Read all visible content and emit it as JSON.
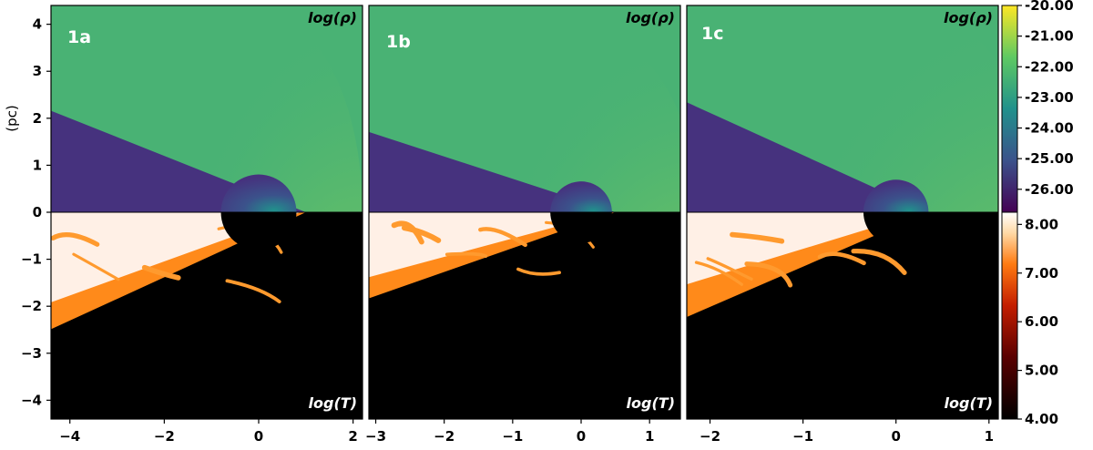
{
  "figure": {
    "y_axis_label": "(pc)",
    "y_ticks": [
      4,
      3,
      2,
      1,
      0,
      -1,
      -2,
      -3,
      -4
    ],
    "y_tick_labels": [
      "4",
      "3",
      "2",
      "1",
      "0",
      "−1",
      "−2",
      "−3",
      "−4"
    ],
    "y_range": [
      -4.4,
      4.4
    ],
    "panels": [
      {
        "id": "1a",
        "label": "1a",
        "top_field_label": "log(ρ)",
        "bottom_field_label": "log(T)",
        "x_range": [
          -4.4,
          2.2
        ],
        "x_ticks": [
          -4,
          -2,
          0,
          2
        ],
        "x_tick_labels": [
          "−4",
          "−2",
          "0",
          "2"
        ],
        "remnant_radius_pc": 0.8,
        "bubble_edge_pc": 1.0,
        "bubble_top_pc": 2.1,
        "bubble_bottom_pc": -2.6
      },
      {
        "id": "1b",
        "label": "1b",
        "top_field_label": "log(ρ)",
        "bottom_field_label": "log(T)",
        "x_range": [
          -3.1,
          1.45
        ],
        "x_ticks": [
          -3,
          -2,
          -1,
          0,
          1
        ],
        "x_tick_labels": [
          "−3",
          "−2",
          "−1",
          "0",
          "1"
        ],
        "remnant_radius_pc": 0.45,
        "bubble_edge_pc": 0.5,
        "bubble_top_pc": 1.7,
        "bubble_bottom_pc": -1.9
      },
      {
        "id": "1c",
        "label": "1c",
        "top_field_label": "log(ρ)",
        "bottom_field_label": "log(T)",
        "x_range": [
          -2.25,
          1.1
        ],
        "x_ticks": [
          -2,
          -1,
          0,
          1
        ],
        "x_tick_labels": [
          "−2",
          "−1",
          "0",
          "1"
        ],
        "remnant_radius_pc": 0.35,
        "bubble_edge_pc": 0.35,
        "bubble_top_pc": 2.3,
        "bubble_bottom_pc": -2.3
      }
    ],
    "colorbar_density": {
      "ticks": [
        -20,
        -21,
        -22,
        -23,
        -24,
        -25,
        -26
      ],
      "tick_labels": [
        "-20.00",
        "-21.00",
        "-22.00",
        "-23.00",
        "-24.00",
        "-25.00",
        "-26.00"
      ],
      "range": [
        -26.75,
        -20.0
      ],
      "colormap": "viridis",
      "colors": [
        "#440154",
        "#3b528b",
        "#21918c",
        "#5ec962",
        "#fde725"
      ]
    },
    "colorbar_temperature": {
      "ticks": [
        8,
        7,
        6,
        5,
        4
      ],
      "tick_labels": [
        "8.00",
        "7.00",
        "6.00",
        "5.00",
        "4.00"
      ],
      "range": [
        4.0,
        8.25
      ],
      "colormap": "gist_heat",
      "colors": [
        "#000000",
        "#5a0000",
        "#c41e00",
        "#ff7b12",
        "#ffd9a6",
        "#ffffff"
      ]
    },
    "palette": {
      "ambient_density": "#49b274",
      "shell_density": "#7fce5a",
      "hot_gas_density": "#46327e",
      "remnant_density": "#3b3f8a",
      "hot_gas_temperature": "#fff0e6",
      "warm_gas_temperature": "#ff8a1a",
      "cold_gas_temperature": "#000000"
    }
  }
}
